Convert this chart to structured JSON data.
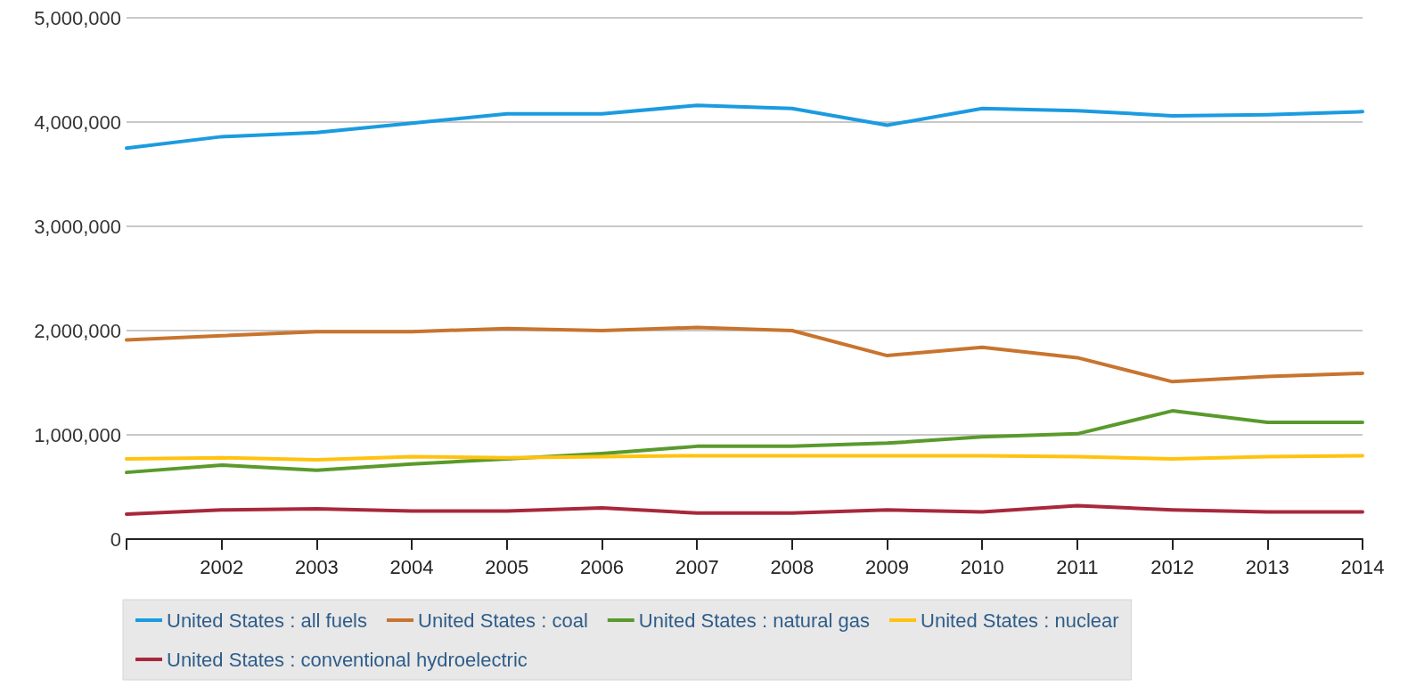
{
  "chart_data": {
    "type": "line",
    "x": [
      2001,
      2002,
      2003,
      2004,
      2005,
      2006,
      2007,
      2008,
      2009,
      2010,
      2011,
      2012,
      2013,
      2014
    ],
    "series": [
      {
        "name": "United States : all fuels",
        "color": "#1b9be0",
        "values": [
          3750000,
          3860000,
          3900000,
          3990000,
          4080000,
          4080000,
          4160000,
          4130000,
          3970000,
          4130000,
          4110000,
          4060000,
          4070000,
          4100000
        ]
      },
      {
        "name": "United States : coal",
        "color": "#c8742f",
        "values": [
          1910000,
          1950000,
          1990000,
          1990000,
          2020000,
          2000000,
          2030000,
          2000000,
          1760000,
          1840000,
          1740000,
          1510000,
          1560000,
          1590000
        ]
      },
      {
        "name": "United States : natural gas",
        "color": "#5a9a2c",
        "values": [
          640000,
          710000,
          660000,
          720000,
          770000,
          820000,
          890000,
          890000,
          920000,
          980000,
          1010000,
          1230000,
          1120000,
          1120000
        ]
      },
      {
        "name": "United States : nuclear",
        "color": "#ffc20e",
        "values": [
          770000,
          780000,
          760000,
          790000,
          780000,
          790000,
          800000,
          800000,
          800000,
          800000,
          790000,
          770000,
          790000,
          800000
        ]
      },
      {
        "name": "United States : conventional hydroelectric",
        "color": "#a8283c",
        "values": [
          240000,
          280000,
          290000,
          270000,
          270000,
          300000,
          250000,
          250000,
          280000,
          260000,
          320000,
          280000,
          260000,
          260000
        ]
      }
    ],
    "xlim": [
      2001,
      2014
    ],
    "xticks": [
      {
        "value": 2001,
        "label": null
      },
      2002,
      2003,
      2004,
      2005,
      2006,
      2007,
      2008,
      2009,
      2010,
      2011,
      2012,
      2013,
      2014
    ],
    "ylim": [
      0,
      5000000
    ],
    "yticks": [
      0,
      {
        "value": 1000000,
        "label": "1,000,000"
      },
      {
        "value": 2000000,
        "label": "2,000,000"
      },
      {
        "value": 3000000,
        "label": "3,000,000"
      },
      {
        "value": 4000000,
        "label": "4,000,000"
      },
      {
        "value": 5000000,
        "label": "5,000,000"
      }
    ],
    "grid": "y",
    "legend": "bottom",
    "marker": "none",
    "line_style": "solid"
  }
}
